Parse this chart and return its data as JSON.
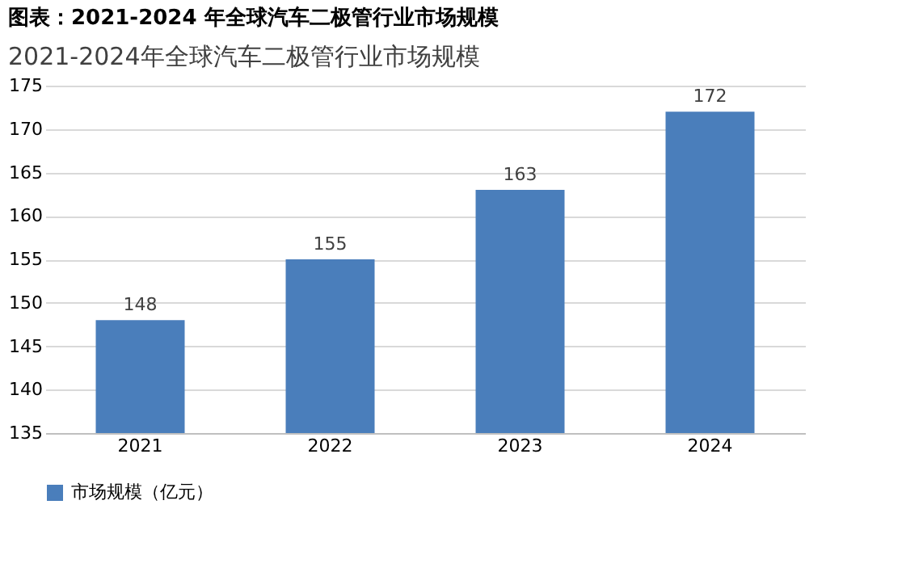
{
  "chart_data": {
    "type": "bar",
    "title": "图表：2021-2024 年全球汽车二极管行业市场规模",
    "subtitle": "2021-2024年全球汽车二极管行业市场规模",
    "categories": [
      "2021",
      "2022",
      "2023",
      "2024"
    ],
    "series": [
      {
        "name": "市场规模（亿元）",
        "color": "#4a7ebb",
        "values": [
          148,
          155,
          163,
          172
        ]
      }
    ],
    "ylim": [
      135,
      175
    ],
    "yticks": [
      135,
      140,
      145,
      150,
      155,
      160,
      165,
      170,
      175
    ],
    "grid": "y",
    "legend": "bottom",
    "data_labels": true
  }
}
